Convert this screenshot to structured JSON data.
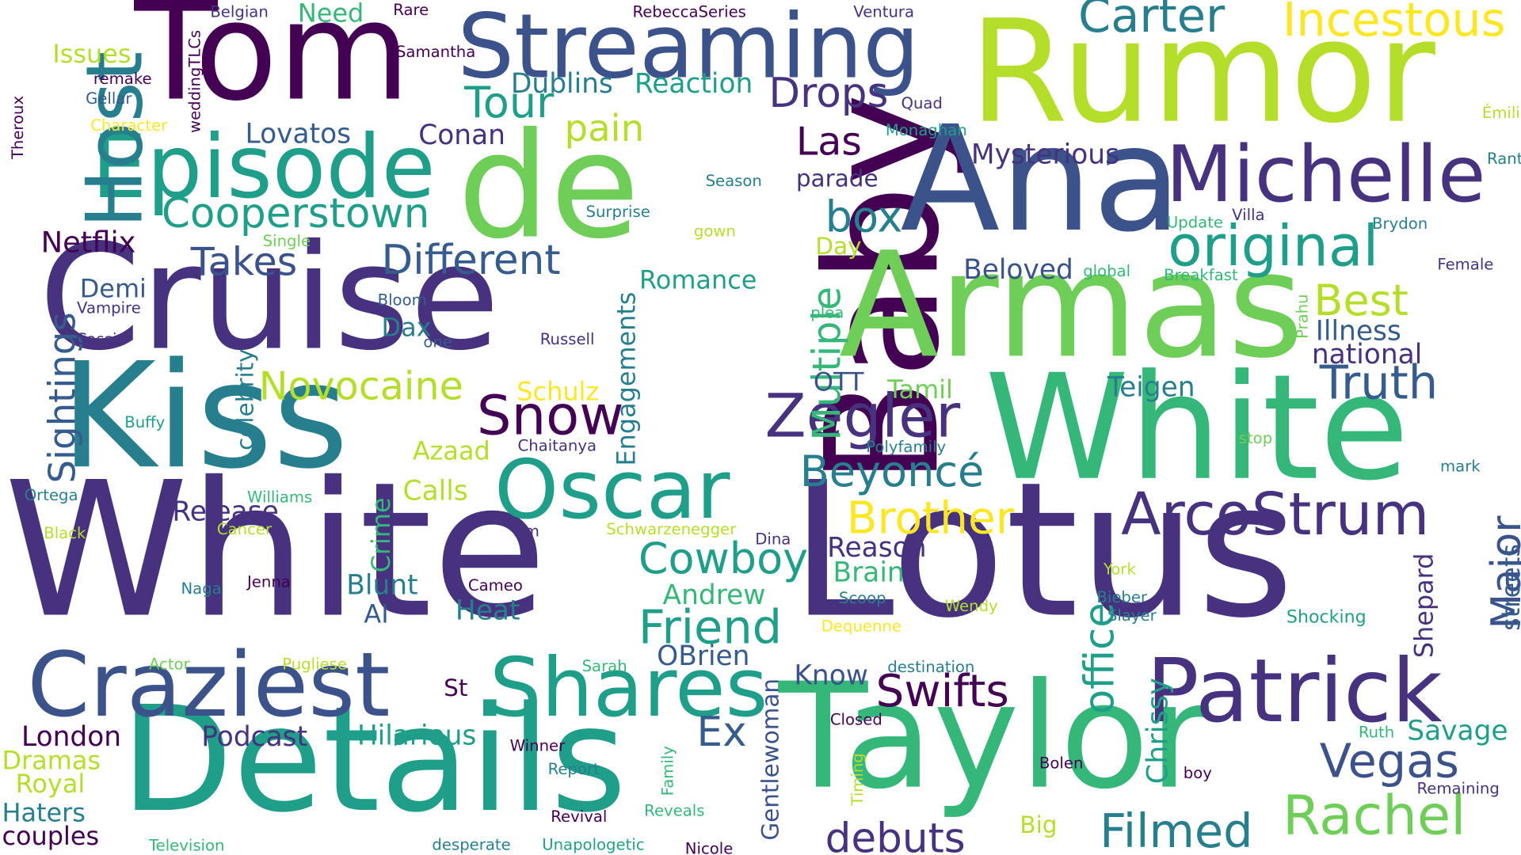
{
  "palette": {
    "dark_purple": "#440154",
    "indigo": "#3b528b",
    "slate_blue": "#46327e",
    "steel_blue": "#365c8d",
    "teal_blue": "#277f8e",
    "teal": "#1f9e89",
    "green_teal": "#35b779",
    "green": "#6ece58",
    "lime": "#b5de2b",
    "yellow": "#fde725"
  },
  "words": [
    {
      "text": "White"
    },
    {
      "text": "Lotus"
    },
    {
      "text": "Rumor"
    },
    {
      "text": "Cruise"
    },
    {
      "text": "Baby"
    },
    {
      "text": "Kiss"
    },
    {
      "text": "Tom"
    },
    {
      "text": "Ana"
    },
    {
      "text": "Armas"
    },
    {
      "text": "White"
    },
    {
      "text": "Taylor"
    },
    {
      "text": "Details"
    },
    {
      "text": "de"
    },
    {
      "text": "Streaming"
    },
    {
      "text": "Episode"
    },
    {
      "text": "Craziest"
    },
    {
      "text": "Patrick"
    },
    {
      "text": "Shares"
    },
    {
      "text": "Michelle"
    },
    {
      "text": "Justin"
    },
    {
      "text": "Oscar"
    },
    {
      "text": "Host"
    },
    {
      "text": "Incestous"
    },
    {
      "text": "Carter"
    },
    {
      "text": "ArcoStrum"
    },
    {
      "text": "Zegler"
    },
    {
      "text": "original"
    },
    {
      "text": "Rachel"
    },
    {
      "text": "Filmed"
    },
    {
      "text": "Cooperstown"
    },
    {
      "text": "Different"
    },
    {
      "text": "Tour"
    },
    {
      "text": "Drops"
    },
    {
      "text": "Snow"
    },
    {
      "text": "Friend"
    },
    {
      "text": "Cowboy"
    },
    {
      "text": "Brother"
    },
    {
      "text": "Beyoncé"
    },
    {
      "text": "Swifts"
    },
    {
      "text": "Truth"
    },
    {
      "text": "Vegas"
    },
    {
      "text": "office"
    },
    {
      "text": "Multiple"
    },
    {
      "text": "Best"
    },
    {
      "text": "Major"
    },
    {
      "text": "debuts"
    },
    {
      "text": "Sightings"
    },
    {
      "text": "Novocaine"
    },
    {
      "text": "Takes"
    },
    {
      "text": "box"
    },
    {
      "text": "pain"
    },
    {
      "text": "Las"
    },
    {
      "text": "Mysterious"
    },
    {
      "text": "Netflix"
    },
    {
      "text": "Dublins"
    },
    {
      "text": "Reaction"
    },
    {
      "text": "Conan"
    },
    {
      "text": "Lovatos"
    },
    {
      "text": "Release"
    },
    {
      "text": "Podcast"
    },
    {
      "text": "Hilarious"
    },
    {
      "text": "London"
    },
    {
      "text": "Ex"
    },
    {
      "text": "Savage"
    },
    {
      "text": "Chrissy"
    },
    {
      "text": "Teigen"
    },
    {
      "text": "Illness"
    },
    {
      "text": "national"
    },
    {
      "text": "Beloved"
    },
    {
      "text": "Heat"
    },
    {
      "text": "Blunt"
    },
    {
      "text": "Andrew"
    },
    {
      "text": "OBrien"
    },
    {
      "text": "Know"
    },
    {
      "text": "Reason"
    },
    {
      "text": "Brain"
    },
    {
      "text": "Gentlewoman"
    },
    {
      "text": "streets"
    },
    {
      "text": "Shepard"
    },
    {
      "text": "Engagements"
    },
    {
      "text": "Schulz"
    },
    {
      "text": "Azaad"
    },
    {
      "text": "Calls"
    },
    {
      "text": "Crime"
    },
    {
      "text": "Romance"
    },
    {
      "text": "Tamil"
    },
    {
      "text": "OTT"
    },
    {
      "text": "Demi"
    },
    {
      "text": "Issues"
    },
    {
      "text": "Need"
    },
    {
      "text": "Dax"
    },
    {
      "text": "AI"
    },
    {
      "text": "Dramas"
    },
    {
      "text": "Royal"
    },
    {
      "text": "Haters"
    },
    {
      "text": "couples"
    },
    {
      "text": "celebrity"
    },
    {
      "text": "parade"
    },
    {
      "text": "Day"
    },
    {
      "text": "St"
    },
    {
      "text": "Big"
    },
    {
      "text": "Shocking"
    },
    {
      "text": "Belgian"
    },
    {
      "text": "Rare"
    },
    {
      "text": "RebeccaSeries"
    },
    {
      "text": "Ventura"
    },
    {
      "text": "Samantha"
    },
    {
      "text": "remake"
    },
    {
      "text": "Gellar"
    },
    {
      "text": "weddingTLCs"
    },
    {
      "text": "Theroux"
    },
    {
      "text": "Character"
    },
    {
      "text": "Quad"
    },
    {
      "text": "Monaghan"
    },
    {
      "text": "Émilie"
    },
    {
      "text": "Rant"
    },
    {
      "text": "Season"
    },
    {
      "text": "Surprise"
    },
    {
      "text": "gown"
    },
    {
      "text": "Single"
    },
    {
      "text": "Update"
    },
    {
      "text": "Villa"
    },
    {
      "text": "Brydon"
    },
    {
      "text": "global"
    },
    {
      "text": "Breakfast"
    },
    {
      "text": "Female"
    },
    {
      "text": "Prahu"
    },
    {
      "text": "Vampire"
    },
    {
      "text": "Bloom"
    },
    {
      "text": "Cassie"
    },
    {
      "text": "one"
    },
    {
      "text": "Russell"
    },
    {
      "text": "plea"
    },
    {
      "text": "Buffy"
    },
    {
      "text": "Chaitanya"
    },
    {
      "text": "Polyfamily"
    },
    {
      "text": "stop"
    },
    {
      "text": "mark"
    },
    {
      "text": "Ortega"
    },
    {
      "text": "Williams"
    },
    {
      "text": "Black"
    },
    {
      "text": "Cancer"
    },
    {
      "text": "Tim"
    },
    {
      "text": "Schwarzenegger"
    },
    {
      "text": "Dina"
    },
    {
      "text": "York"
    },
    {
      "text": "Naga"
    },
    {
      "text": "Jenna"
    },
    {
      "text": "Cameo"
    },
    {
      "text": "Scoop"
    },
    {
      "text": "Wendy"
    },
    {
      "text": "Bieber"
    },
    {
      "text": "Slayer"
    },
    {
      "text": "Dequenne"
    },
    {
      "text": "Actor"
    },
    {
      "text": "Pugliese"
    },
    {
      "text": "Sarah"
    },
    {
      "text": "destination"
    },
    {
      "text": "Closed"
    },
    {
      "text": "Ruth"
    },
    {
      "text": "Timing"
    },
    {
      "text": "Family"
    },
    {
      "text": "Winner"
    },
    {
      "text": "Report"
    },
    {
      "text": "Bolen"
    },
    {
      "text": "boy"
    },
    {
      "text": "Remaining"
    },
    {
      "text": "Revival"
    },
    {
      "text": "Reveals"
    },
    {
      "text": "Television"
    },
    {
      "text": "desperate"
    },
    {
      "text": "Unapologetic"
    },
    {
      "text": "Nicole"
    }
  ]
}
